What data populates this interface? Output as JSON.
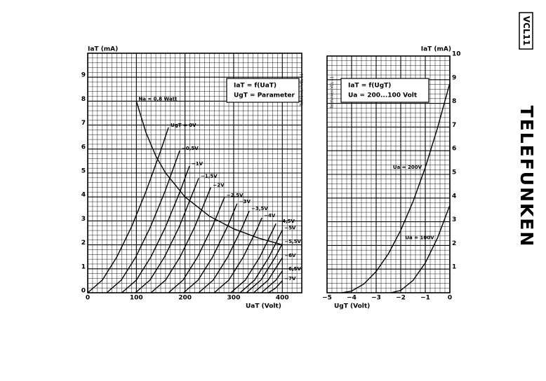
{
  "header": {
    "model": "VCL11",
    "brand": "TELEFUNKEN"
  },
  "chart_data": [
    {
      "type": "line",
      "ylabel": "IaT (mA)",
      "xlabel": "UaT (Volt)",
      "box": [
        "IaT = f(UaT)",
        "UgT = Parameter"
      ],
      "stamp": "Telefunken VCL 11",
      "xlim": [
        0,
        440
      ],
      "ylim": [
        0,
        10
      ],
      "xticks": [
        0,
        100,
        200,
        300,
        400
      ],
      "yticks": [
        0,
        1,
        2,
        3,
        4,
        5,
        6,
        7,
        8,
        9
      ],
      "grid": true,
      "series": [
        {
          "name": "UgT = 0V",
          "color": "#000000",
          "x": [
            0,
            30,
            60,
            90,
            120,
            150,
            166
          ],
          "values": [
            0,
            0.53,
            1.5,
            2.75,
            4.24,
            5.93,
            6.9
          ]
        },
        {
          "name": "−0,5V",
          "color": "#000000",
          "x": [
            39,
            69,
            99,
            129,
            159,
            189
          ],
          "values": [
            0,
            0.53,
            1.5,
            2.75,
            4.24,
            5.93
          ]
        },
        {
          "name": "−1V",
          "color": "#000000",
          "x": [
            70,
            100,
            130,
            160,
            190,
            209
          ],
          "values": [
            0,
            0.53,
            1.5,
            2.75,
            4.24,
            5.29
          ]
        },
        {
          "name": "−1,5V",
          "color": "#000000",
          "x": [
            98,
            128,
            158,
            188,
            228
          ],
          "values": [
            0,
            0.53,
            1.5,
            2.75,
            4.78
          ]
        },
        {
          "name": "−2V",
          "color": "#000000",
          "x": [
            130,
            160,
            190,
            220,
            253
          ],
          "values": [
            0,
            0.53,
            1.5,
            2.75,
            4.4
          ]
        },
        {
          "name": "−2,5V",
          "color": "#000000",
          "x": [
            166,
            196,
            226,
            256,
            281
          ],
          "values": [
            0,
            0.53,
            1.5,
            2.75,
            3.98
          ]
        },
        {
          "name": "−3V",
          "color": "#000000",
          "x": [
            197,
            227,
            257,
            287,
            307
          ],
          "values": [
            0,
            0.53,
            1.5,
            2.75,
            3.72
          ]
        },
        {
          "name": "−3,5V",
          "color": "#000000",
          "x": [
            228,
            258,
            288,
            318,
            332
          ],
          "values": [
            0,
            0.53,
            1.5,
            2.75,
            3.42
          ]
        },
        {
          "name": "−4V",
          "color": "#000000",
          "x": [
            260,
            290,
            320,
            350,
            358
          ],
          "values": [
            0,
            0.53,
            1.5,
            2.75,
            3.13
          ]
        },
        {
          "name": "−4,5V",
          "color": "#000000",
          "x": [
            294,
            324,
            354,
            387
          ],
          "values": [
            0,
            0.53,
            1.5,
            2.89
          ]
        },
        {
          "name": "−5V",
          "color": "#000000",
          "x": [
            313,
            343,
            373,
            400
          ],
          "values": [
            0,
            0.53,
            1.5,
            2.62
          ]
        },
        {
          "name": "−5,5V",
          "color": "#000000",
          "x": [
            326,
            356,
            386,
            400
          ],
          "values": [
            0,
            0.53,
            1.5,
            2.05
          ]
        },
        {
          "name": "−6V",
          "color": "#000000",
          "x": [
            341,
            371,
            400
          ],
          "values": [
            0,
            0.53,
            1.46
          ]
        },
        {
          "name": "−6,5V",
          "color": "#000000",
          "x": [
            357,
            387,
            400
          ],
          "values": [
            0,
            0.53,
            0.91
          ]
        },
        {
          "name": "−7V",
          "color": "#000000",
          "x": [
            371,
            386,
            400
          ],
          "values": [
            0,
            0.19,
            0.5
          ]
        },
        {
          "name": "Na = 0,8 Watt",
          "color": "#000000",
          "x": [
            100,
            120,
            140,
            160,
            200,
            250,
            300,
            350,
            400
          ],
          "values": [
            8,
            6.67,
            5.71,
            5,
            4,
            3.2,
            2.67,
            2.29,
            2
          ]
        }
      ]
    },
    {
      "type": "line",
      "ylabel": "IaT (mA)",
      "xlabel": "UgT (Volt)",
      "box": [
        "IaT = f(UgT)",
        "Ua = 200...100 Volt"
      ],
      "stamp": "Telefunken VCL 11",
      "xlim": [
        -5,
        0
      ],
      "ylim": [
        0,
        10
      ],
      "xticks": [
        {
          "value": -5,
          "label": "−5"
        },
        {
          "value": -4,
          "label": "−4"
        },
        {
          "value": -3,
          "label": "−3"
        },
        {
          "value": -2,
          "label": "−2"
        },
        {
          "value": -1,
          "label": "−1"
        },
        0
      ],
      "yticks": [
        1,
        2,
        3,
        4,
        5,
        6,
        7,
        8,
        9,
        10
      ],
      "grid": true,
      "series": [
        {
          "name": "Ua = 200V",
          "color": "#000000",
          "x": [
            -4.4,
            -4,
            -3.5,
            -3,
            -2.5,
            -2,
            -1.5,
            -1,
            -0.5,
            0
          ],
          "values": [
            0,
            0.07,
            0.37,
            0.9,
            1.65,
            2.64,
            3.85,
            5.29,
            6.97,
            8.86
          ]
        },
        {
          "name": "Ua = 100V",
          "color": "#000000",
          "x": [
            -2.4,
            -2,
            -1.5,
            -1,
            -0.5,
            0
          ],
          "values": [
            0,
            0.1,
            0.52,
            1.26,
            2.32,
            3.7
          ]
        }
      ]
    }
  ]
}
